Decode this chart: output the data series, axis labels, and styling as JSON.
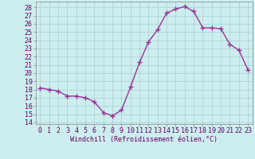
{
  "x": [
    0,
    1,
    2,
    3,
    4,
    5,
    6,
    7,
    8,
    9,
    10,
    11,
    12,
    13,
    14,
    15,
    16,
    17,
    18,
    19,
    20,
    21,
    22,
    23
  ],
  "y": [
    18.2,
    18.0,
    17.8,
    17.2,
    17.2,
    17.0,
    16.5,
    15.2,
    14.8,
    15.5,
    18.3,
    21.3,
    23.8,
    25.3,
    27.3,
    27.8,
    28.1,
    27.5,
    25.5,
    25.5,
    25.4,
    23.5,
    22.8,
    20.4
  ],
  "line_color": "#993399",
  "marker": "+",
  "marker_size": 4,
  "marker_lw": 1.0,
  "line_width": 1.0,
  "bg_color": "#cceeee",
  "grid_color": "#aacccc",
  "xlabel": "Windchill (Refroidissement éolien,°C)",
  "ylabel_ticks": [
    14,
    15,
    16,
    17,
    18,
    19,
    20,
    21,
    22,
    23,
    24,
    25,
    26,
    27,
    28
  ],
  "ylim": [
    13.8,
    28.7
  ],
  "xlim": [
    -0.5,
    23.5
  ],
  "tick_fontsize": 6,
  "label_fontsize": 6
}
